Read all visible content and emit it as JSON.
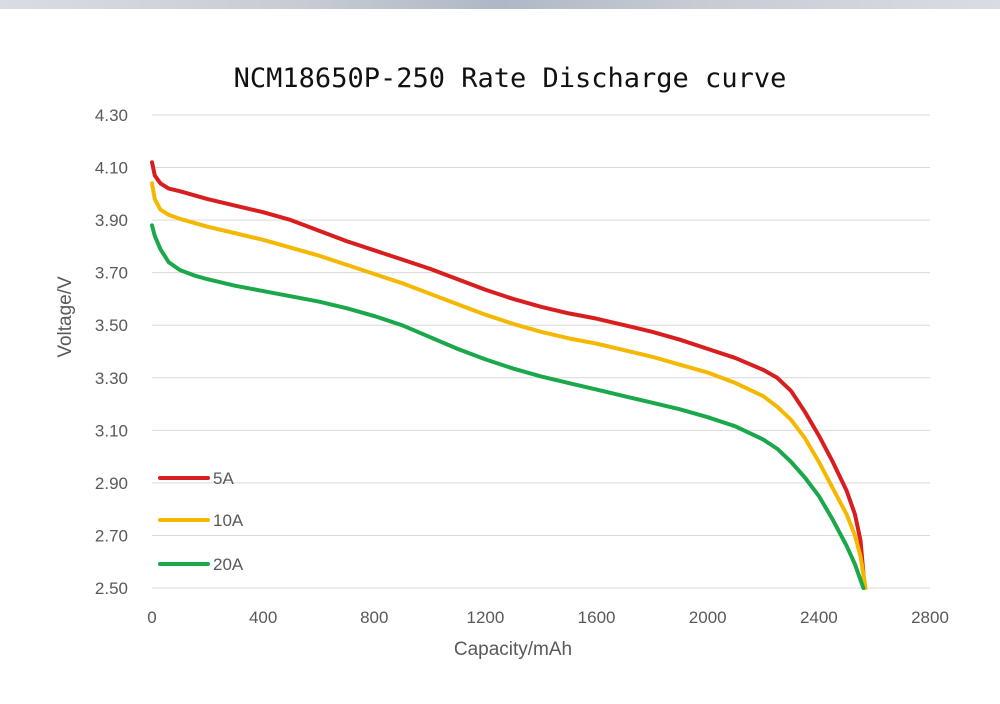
{
  "chart_data": {
    "type": "line",
    "title": "NCM18650P-250 Rate Discharge curve",
    "xlabel": "Capacity/mAh",
    "ylabel": "Voltage/V",
    "xlim": [
      0,
      2800
    ],
    "ylim": [
      2.5,
      4.3
    ],
    "xticks": [
      "0",
      "400",
      "800",
      "1200",
      "1600",
      "2000",
      "2400",
      "2800"
    ],
    "yticks": [
      "4.30",
      "4.10",
      "3.90",
      "3.70",
      "3.50",
      "3.30",
      "3.10",
      "2.90",
      "2.70",
      "2.50"
    ],
    "grid": "horizontal",
    "legend_position": "bottom-left",
    "series": [
      {
        "name": "5A",
        "color": "#d81e1e",
        "x": [
          0,
          10,
          30,
          60,
          100,
          200,
          300,
          400,
          500,
          600,
          700,
          800,
          900,
          1000,
          1100,
          1200,
          1300,
          1400,
          1500,
          1600,
          1700,
          1800,
          1900,
          2000,
          2100,
          2200,
          2250,
          2300,
          2350,
          2400,
          2450,
          2500,
          2530,
          2550,
          2565
        ],
        "y": [
          4.12,
          4.07,
          4.04,
          4.02,
          4.01,
          3.98,
          3.955,
          3.93,
          3.9,
          3.86,
          3.82,
          3.785,
          3.75,
          3.715,
          3.675,
          3.635,
          3.6,
          3.57,
          3.545,
          3.525,
          3.5,
          3.475,
          3.445,
          3.41,
          3.375,
          3.33,
          3.3,
          3.25,
          3.17,
          3.08,
          2.98,
          2.87,
          2.78,
          2.68,
          2.5
        ]
      },
      {
        "name": "10A",
        "color": "#f5b800",
        "x": [
          0,
          10,
          30,
          60,
          100,
          200,
          300,
          400,
          500,
          600,
          700,
          800,
          900,
          1000,
          1100,
          1200,
          1300,
          1400,
          1500,
          1600,
          1700,
          1800,
          1900,
          2000,
          2100,
          2200,
          2250,
          2300,
          2350,
          2400,
          2450,
          2500,
          2530,
          2550,
          2568
        ],
        "y": [
          4.04,
          3.98,
          3.94,
          3.92,
          3.905,
          3.875,
          3.85,
          3.825,
          3.795,
          3.765,
          3.73,
          3.695,
          3.66,
          3.62,
          3.58,
          3.54,
          3.505,
          3.475,
          3.45,
          3.43,
          3.405,
          3.38,
          3.35,
          3.32,
          3.28,
          3.23,
          3.19,
          3.14,
          3.07,
          2.98,
          2.88,
          2.78,
          2.7,
          2.62,
          2.5
        ]
      },
      {
        "name": "20A",
        "color": "#1aa84b",
        "x": [
          0,
          10,
          30,
          60,
          100,
          150,
          200,
          300,
          400,
          500,
          600,
          700,
          800,
          900,
          1000,
          1100,
          1200,
          1300,
          1400,
          1500,
          1600,
          1700,
          1800,
          1900,
          2000,
          2100,
          2200,
          2250,
          2300,
          2350,
          2400,
          2450,
          2500,
          2530,
          2560
        ],
        "y": [
          3.88,
          3.84,
          3.79,
          3.74,
          3.71,
          3.69,
          3.675,
          3.65,
          3.63,
          3.61,
          3.59,
          3.565,
          3.535,
          3.5,
          3.455,
          3.41,
          3.37,
          3.335,
          3.305,
          3.28,
          3.255,
          3.23,
          3.205,
          3.18,
          3.15,
          3.115,
          3.065,
          3.03,
          2.98,
          2.92,
          2.85,
          2.76,
          2.66,
          2.59,
          2.5
        ]
      }
    ]
  }
}
